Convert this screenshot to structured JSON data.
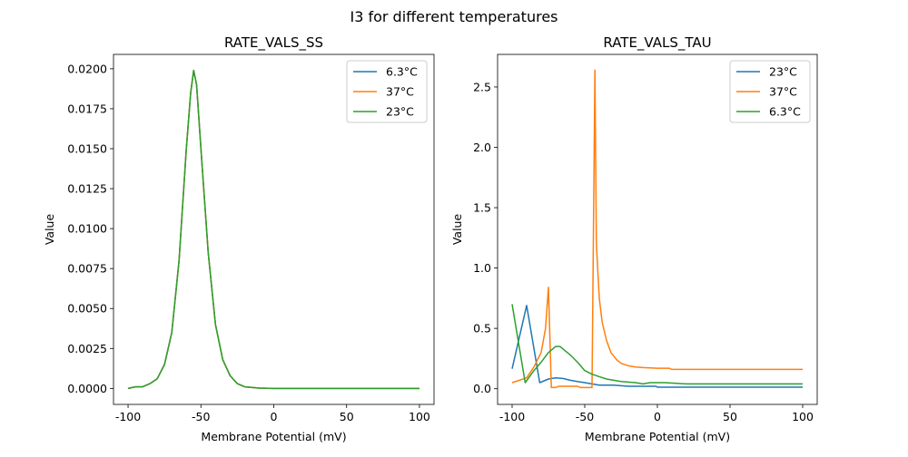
{
  "suptitle": "I3 for different temperatures",
  "colors": {
    "blue": "#1f77b4",
    "orange": "#ff7f0e",
    "green": "#2ca02c"
  },
  "chart_data": [
    {
      "type": "line",
      "title": "RATE_VALS_SS",
      "xlabel": "Membrane Potential (mV)",
      "ylabel": "Value",
      "xlim": [
        -110,
        110
      ],
      "ylim": [
        -0.001,
        0.0209
      ],
      "xticks": [
        "-100",
        "-50",
        "0",
        "50",
        "100"
      ],
      "xtick_values": [
        -100,
        -50,
        0,
        50,
        100
      ],
      "yticks": [
        "0.0000",
        "0.0025",
        "0.0050",
        "0.0075",
        "0.0100",
        "0.0125",
        "0.0150",
        "0.0175",
        "0.0200"
      ],
      "ytick_values": [
        0,
        0.0025,
        0.005,
        0.0075,
        0.01,
        0.0125,
        0.015,
        0.0175,
        0.02
      ],
      "grid": false,
      "legend": "top-right",
      "x": [
        -100,
        -95,
        -90,
        -85,
        -80,
        -75,
        -70,
        -65,
        -60,
        -57,
        -55,
        -53,
        -50,
        -45,
        -40,
        -35,
        -30,
        -25,
        -20,
        -10,
        0,
        50,
        100
      ],
      "series": [
        {
          "name": "6.3°C",
          "color": "#1f77b4",
          "values": [
            0,
            0.0001,
            0.0001,
            0.0003,
            0.0006,
            0.0015,
            0.0035,
            0.008,
            0.015,
            0.0185,
            0.0199,
            0.019,
            0.015,
            0.0085,
            0.004,
            0.0018,
            0.0008,
            0.0003,
            0.0001,
            2e-05,
            0,
            0,
            0
          ]
        },
        {
          "name": "37°C",
          "color": "#ff7f0e",
          "values": [
            0,
            0.0001,
            0.0001,
            0.0003,
            0.0006,
            0.0015,
            0.0035,
            0.008,
            0.015,
            0.0185,
            0.0199,
            0.019,
            0.015,
            0.0085,
            0.004,
            0.0018,
            0.0008,
            0.0003,
            0.0001,
            2e-05,
            0,
            0,
            0
          ]
        },
        {
          "name": "23°C",
          "color": "#2ca02c",
          "values": [
            0,
            0.0001,
            0.0001,
            0.0003,
            0.0006,
            0.0015,
            0.0035,
            0.008,
            0.015,
            0.0185,
            0.0199,
            0.019,
            0.015,
            0.0085,
            0.004,
            0.0018,
            0.0008,
            0.0003,
            0.0001,
            2e-05,
            0,
            0,
            0
          ]
        }
      ]
    },
    {
      "type": "line",
      "title": "RATE_VALS_TAU",
      "xlabel": "Membrane Potential (mV)",
      "ylabel": "Value",
      "xlim": [
        -110,
        110
      ],
      "ylim": [
        -0.13,
        2.77
      ],
      "xticks": [
        "-100",
        "-50",
        "0",
        "50",
        "100"
      ],
      "xtick_values": [
        -100,
        -50,
        0,
        50,
        100
      ],
      "yticks": [
        "0.0",
        "0.5",
        "1.0",
        "1.5",
        "2.0",
        "2.5"
      ],
      "ytick_values": [
        0,
        0.5,
        1,
        1.5,
        2,
        2.5
      ],
      "grid": false,
      "legend": "top-right",
      "series": [
        {
          "name": "23°C",
          "color": "#1f77b4",
          "x": [
            -100,
            -90,
            -81,
            -75,
            -70,
            -65,
            -60,
            -55,
            -50,
            -45,
            -40,
            -30,
            -20,
            -10,
            -1,
            0,
            100
          ],
          "values": [
            0.165,
            0.69,
            0.05,
            0.08,
            0.09,
            0.085,
            0.07,
            0.06,
            0.05,
            0.04,
            0.03,
            0.03,
            0.02,
            0.02,
            0.02,
            0.013,
            0.013
          ]
        },
        {
          "name": "37°C",
          "color": "#ff7f0e",
          "x": [
            -100,
            -90,
            -85,
            -80,
            -77,
            -75,
            -73,
            -70,
            -68,
            -55,
            -53,
            -45,
            -43,
            -42,
            -40,
            -38,
            -35,
            -32,
            -28,
            -25,
            -20,
            -15,
            -10,
            0,
            8,
            10,
            100
          ],
          "values": [
            0.05,
            0.09,
            0.18,
            0.3,
            0.5,
            0.84,
            0.01,
            0.01,
            0.02,
            0.02,
            0.01,
            0.01,
            2.64,
            1.2,
            0.75,
            0.55,
            0.4,
            0.3,
            0.24,
            0.21,
            0.19,
            0.18,
            0.175,
            0.17,
            0.17,
            0.16,
            0.16
          ]
        },
        {
          "name": "6.3°C",
          "color": "#2ca02c",
          "x": [
            -100,
            -91,
            -85,
            -80,
            -75,
            -70,
            -67,
            -65,
            -60,
            -55,
            -50,
            -45,
            -40,
            -35,
            -30,
            -25,
            -15,
            -10,
            -5,
            5,
            20,
            100
          ],
          "values": [
            0.7,
            0.05,
            0.15,
            0.22,
            0.3,
            0.35,
            0.35,
            0.33,
            0.28,
            0.22,
            0.15,
            0.12,
            0.1,
            0.08,
            0.07,
            0.06,
            0.05,
            0.04,
            0.05,
            0.05,
            0.04,
            0.04
          ]
        }
      ]
    }
  ]
}
